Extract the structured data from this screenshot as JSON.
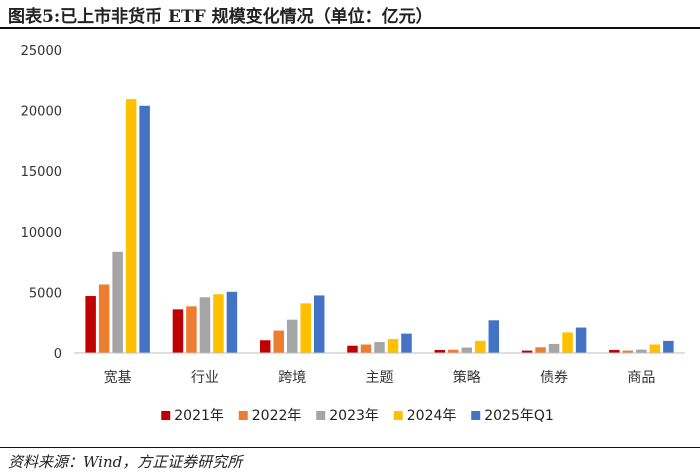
{
  "figure": {
    "title": "图表5:已上市非货币 ETF 规模变化情况（单位：亿元）",
    "source": "资料来源：Wind，方正证券研究所"
  },
  "chart_data": {
    "type": "bar",
    "title": "图表5:已上市非货币 ETF 规模变化情况（单位：亿元）",
    "xlabel": "",
    "ylabel": "",
    "ylim": [
      0,
      25000
    ],
    "yticks": [
      0,
      5000,
      10000,
      15000,
      20000,
      25000
    ],
    "grid": false,
    "legend_position": "bottom",
    "categories": [
      "宽基",
      "行业",
      "跨境",
      "主题",
      "策略",
      "债券",
      "商品"
    ],
    "series": [
      {
        "name": "2021年",
        "color": "#c00000",
        "values": [
          4700,
          3600,
          1050,
          600,
          250,
          200,
          250
        ]
      },
      {
        "name": "2022年",
        "color": "#ed7d31",
        "values": [
          5650,
          3850,
          1850,
          700,
          270,
          470,
          200
        ]
      },
      {
        "name": "2023年",
        "color": "#a5a5a5",
        "values": [
          8350,
          4600,
          2750,
          900,
          450,
          750,
          280
        ]
      },
      {
        "name": "2024年",
        "color": "#ffc000",
        "values": [
          20950,
          4850,
          4100,
          1150,
          1000,
          1700,
          700
        ]
      },
      {
        "name": "2025年Q1",
        "color": "#4472c4",
        "values": [
          20400,
          5050,
          4750,
          1600,
          2700,
          2100,
          1000
        ]
      }
    ]
  }
}
